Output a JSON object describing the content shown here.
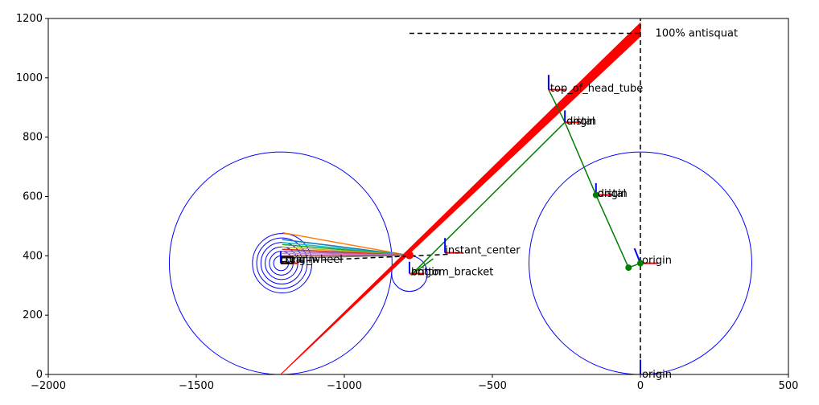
{
  "chart_data": {
    "type": "scatter",
    "title": "",
    "xlabel": "",
    "ylabel": "",
    "xlim": [
      -2000,
      500
    ],
    "ylim": [
      0,
      1200
    ],
    "grid": false,
    "xticks": [
      -2000,
      -1500,
      -1000,
      -500,
      0,
      500
    ],
    "yticks": [
      0,
      200,
      400,
      600,
      800,
      1000,
      1200
    ],
    "colors": {
      "wheel": "#0000ff",
      "frame": "#008000",
      "antisquat": "#ff0000",
      "guide": "#000000",
      "axis_x": "#ff0000",
      "axis_y": "#0000ff"
    },
    "guides": {
      "antisquat_level_y": 1150,
      "antisquat_level_x_range": [
        -780,
        0
      ],
      "vertical_x": 0,
      "vertical_y_range": [
        0,
        1200
      ],
      "ic_line": {
        "from": [
          -1210,
          380
        ],
        "to": [
          -650,
          405
        ]
      }
    },
    "rear_wheel": {
      "center": [
        -1215,
        375
      ],
      "radius": 375,
      "small_radii": [
        25,
        40,
        55,
        70,
        85,
        100
      ]
    },
    "front_wheel": {
      "center": [
        0,
        375
      ],
      "radius": 375
    },
    "bracket_circle": {
      "center": [
        -780,
        340
      ],
      "radius": 60
    },
    "frame_points": [
      {
        "x": -310,
        "y": 960
      },
      {
        "x": -255,
        "y": 850
      },
      {
        "x": -150,
        "y": 605
      },
      {
        "x": -40,
        "y": 360
      },
      {
        "x": 0,
        "y": 375
      }
    ],
    "frame_lines": [
      [
        [
          -310,
          960
        ],
        [
          -255,
          850
        ],
        [
          -150,
          605
        ],
        [
          -40,
          360
        ],
        [
          0,
          375
        ]
      ],
      [
        [
          -255,
          850
        ],
        [
          -775,
          335
        ]
      ],
      [
        [
          -775,
          335
        ],
        [
          -700,
          390
        ]
      ]
    ],
    "antisquat_band": {
      "base": [
        -1215,
        0
      ],
      "top_upper": [
        0,
        1185
      ],
      "top_lower": [
        0,
        1140
      ]
    },
    "antisquat_marker": [
      -780,
      402
    ],
    "chain_lines": [
      {
        "from": [
          -1210,
          478
        ],
        "color": "#ff7f0e"
      },
      {
        "from": [
          -1210,
          455
        ],
        "color": "#1f77b4"
      },
      {
        "from": [
          -1210,
          445
        ],
        "color": "#17becf"
      },
      {
        "from": [
          -1210,
          438
        ],
        "color": "#2ca02c"
      },
      {
        "from": [
          -1210,
          430
        ],
        "color": "#bcbd22"
      },
      {
        "from": [
          -1210,
          422
        ],
        "color": "#d62728"
      },
      {
        "from": [
          -1210,
          415
        ],
        "color": "#9467bd"
      },
      {
        "from": [
          -1210,
          408
        ],
        "color": "#e377c2"
      },
      {
        "from": [
          -1210,
          400
        ],
        "color": "#8c564b"
      },
      {
        "from": [
          -1210,
          392
        ],
        "color": "#7f7f7f"
      }
    ],
    "chain_target": [
      -785,
      402
    ],
    "axis_triads": [
      {
        "origin": [
          -310,
          960
        ],
        "ux": [
          60,
          0
        ],
        "uy": [
          0,
          50
        ]
      },
      {
        "origin": [
          -255,
          850
        ],
        "ux": [
          50,
          0
        ],
        "uy": [
          0,
          40
        ]
      },
      {
        "origin": [
          -150,
          605
        ],
        "ux": [
          50,
          0
        ],
        "uy": [
          0,
          40
        ]
      },
      {
        "origin": [
          0,
          375
        ],
        "ux": [
          60,
          0
        ],
        "uy": [
          -20,
          50
        ]
      },
      {
        "origin": [
          -780,
          340
        ],
        "ux": [
          50,
          0
        ],
        "uy": [
          0,
          40
        ]
      },
      {
        "origin": [
          -660,
          410
        ],
        "ux": [
          60,
          0
        ],
        "uy": [
          0,
          50
        ]
      },
      {
        "origin": [
          0,
          0
        ],
        "ux": [
          60,
          0
        ],
        "uy": [
          0,
          50
        ]
      },
      {
        "origin": [
          -1215,
          375
        ],
        "ux": [
          60,
          0
        ],
        "uy": [
          0,
          40
        ]
      }
    ],
    "labels": [
      {
        "text": "100% antisquat",
        "x": 45,
        "y": 1150
      },
      {
        "text": "top_of_head_tube",
        "x": -310,
        "y": 965
      },
      {
        "text": "origin",
        "x": -255,
        "y": 853
      },
      {
        "text": "distal",
        "x": -255,
        "y": 853
      },
      {
        "text": "origin",
        "x": -150,
        "y": 610
      },
      {
        "text": "distal",
        "x": -150,
        "y": 610
      },
      {
        "text": "origin",
        "x": 0,
        "y": 385
      },
      {
        "text": "origin",
        "x": 0,
        "y": 0
      },
      {
        "text": "instant_center",
        "x": -665,
        "y": 418
      },
      {
        "text": "origin",
        "x": -780,
        "y": 345
      },
      {
        "text": "bottom_bracket",
        "x": -780,
        "y": 345
      },
      {
        "text": "origin",
        "x": -1205,
        "y": 388
      },
      {
        "text": "rear_wheel",
        "x": -1205,
        "y": 388
      }
    ]
  }
}
